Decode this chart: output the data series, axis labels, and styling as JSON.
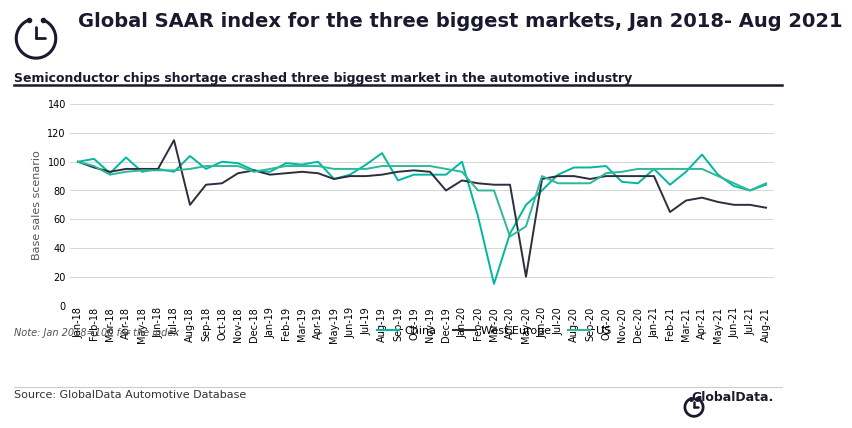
{
  "title": "Global SAAR index for the three biggest markets, Jan 2018- Aug 2021",
  "subtitle": "Semiconductor chips shortage crashed three biggest market in the automotive industry",
  "ylabel": "Base sales scenario",
  "note": "Note: Jan 2018=100 for the index",
  "source": "Source: GlobalData Automotive Database",
  "globaldata_text": "GlobalData.",
  "ylim": [
    0,
    140
  ],
  "yticks": [
    0,
    20,
    40,
    60,
    80,
    100,
    120,
    140
  ],
  "labels": [
    "Jan-18",
    "Feb-18",
    "Mar-18",
    "Apr-18",
    "May-18",
    "Jun-18",
    "Jul-18",
    "Aug-18",
    "Sep-18",
    "Oct-18",
    "Nov-18",
    "Dec-18",
    "Jan-19",
    "Feb-19",
    "Mar-19",
    "Apr-19",
    "May-19",
    "Jun-19",
    "Jul-19",
    "Aug-19",
    "Sep-19",
    "Oct-19",
    "Nov-19",
    "Dec-19",
    "Jan-20",
    "Feb-20",
    "Mar-20",
    "Apr-20",
    "May-20",
    "Jun-20",
    "Jul-20",
    "Aug-20",
    "Sep-20",
    "Oct-20",
    "Nov-20",
    "Dec-20",
    "Jan-21",
    "Feb-21",
    "Mar-21",
    "Apr-21",
    "May-21",
    "Jun-21",
    "Jul-21",
    "Aug-21"
  ],
  "china": [
    100,
    102,
    92,
    103,
    93,
    95,
    93,
    104,
    95,
    100,
    99,
    94,
    93,
    99,
    98,
    100,
    88,
    91,
    98,
    106,
    87,
    91,
    91,
    91,
    100,
    62,
    15,
    50,
    70,
    80,
    91,
    96,
    96,
    97,
    86,
    85,
    95,
    84,
    93,
    105,
    91,
    83,
    80,
    84
  ],
  "west_europe": [
    100,
    96,
    93,
    95,
    95,
    95,
    115,
    70,
    84,
    85,
    92,
    94,
    91,
    92,
    93,
    92,
    88,
    90,
    90,
    91,
    93,
    94,
    93,
    80,
    87,
    85,
    84,
    84,
    20,
    88,
    90,
    90,
    88,
    90,
    90,
    90,
    90,
    65,
    73,
    75,
    72,
    70,
    70,
    68
  ],
  "us": [
    100,
    97,
    91,
    93,
    94,
    94,
    94,
    95,
    97,
    97,
    97,
    93,
    95,
    97,
    97,
    97,
    95,
    95,
    95,
    97,
    97,
    97,
    97,
    95,
    93,
    80,
    80,
    48,
    55,
    90,
    85,
    85,
    85,
    92,
    93,
    95,
    95,
    95,
    95,
    95,
    90,
    85,
    80,
    85
  ],
  "china_color": "#00b8a0",
  "west_europe_color": "#2e2e3e",
  "us_color": "#2db89a",
  "bg_color": "#ffffff",
  "grid_color": "#d0d0d0",
  "title_color": "#1a1a2e",
  "subtitle_color": "#1a1a2e",
  "title_fontsize": 14,
  "subtitle_fontsize": 9,
  "tick_fontsize": 7,
  "ylabel_fontsize": 8,
  "legend_fontsize": 8,
  "note_fontsize": 7,
  "source_fontsize": 8
}
